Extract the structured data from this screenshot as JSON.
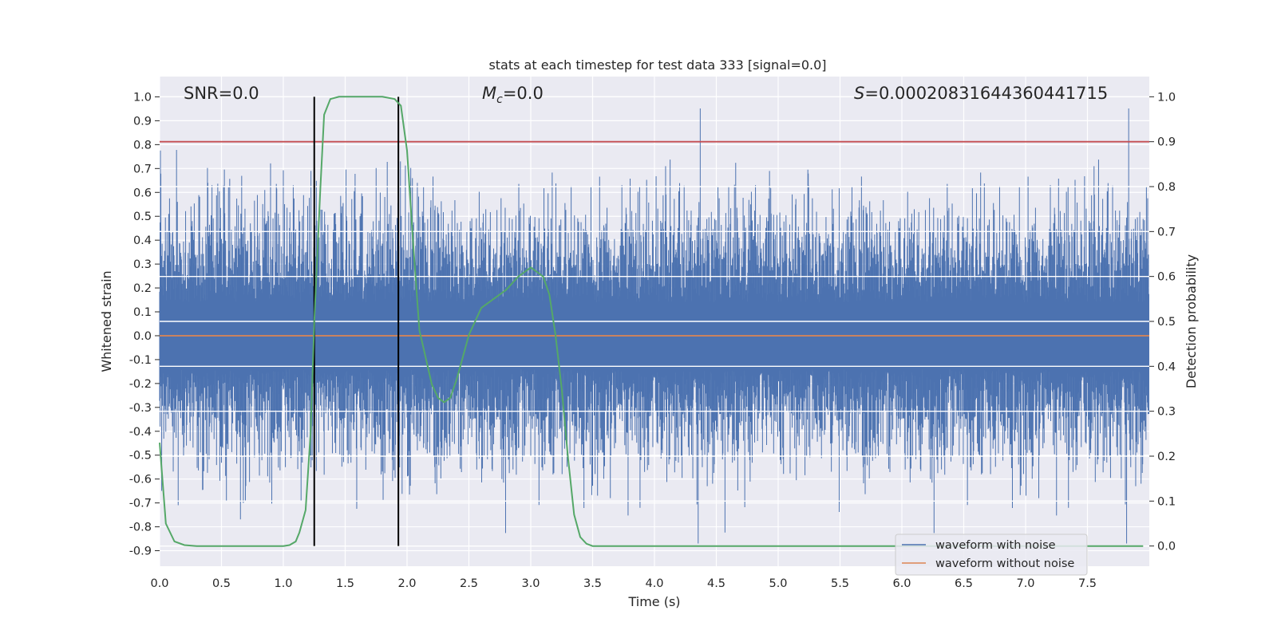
{
  "chart_data": {
    "type": "line",
    "title": "stats at each timestep for test data 333 [signal=0.0]",
    "xlabel": "Time (s)",
    "ylabel": "Whitened strain",
    "y2label": "Detection probability",
    "xlim": [
      0.0,
      8.0
    ],
    "ylim": [
      -0.965,
      1.085
    ],
    "y2lim": [
      -0.045,
      1.045
    ],
    "xticks": [
      "0.0",
      "0.5",
      "1.0",
      "1.5",
      "2.0",
      "2.5",
      "3.0",
      "3.5",
      "4.0",
      "4.5",
      "5.0",
      "5.5",
      "6.0",
      "6.5",
      "7.0",
      "7.5"
    ],
    "yticks": [
      "1.0",
      "0.9",
      "0.8",
      "0.7",
      "0.6",
      "0.5",
      "0.4",
      "0.3",
      "0.2",
      "0.1",
      "0.0",
      "-0.1",
      "-0.2",
      "-0.3",
      "-0.4",
      "-0.5",
      "-0.6",
      "-0.7",
      "-0.8",
      "-0.9"
    ],
    "y2ticks": [
      "1.0",
      "0.9",
      "0.8",
      "0.7",
      "0.6",
      "0.5",
      "0.4",
      "0.3",
      "0.2",
      "0.1",
      "0.0"
    ],
    "annotations": {
      "snr": "SNR=0.0",
      "mc_symbol": "M",
      "mc_sub": "c",
      "mc_value": "=0.0",
      "s_symbol": "S",
      "s_value": "=0.00020831644360441715"
    },
    "threshold_probability": 0.9,
    "vertical_markers_s": [
      1.25,
      1.93
    ],
    "series": [
      {
        "name": "waveform with noise",
        "color": "#4c72b0",
        "axis": "left",
        "note": "dense whitened noise, approx. range -0.87 to 1.0"
      },
      {
        "name": "waveform without noise",
        "color": "#dd8452",
        "axis": "left",
        "values_constant": 0.0
      },
      {
        "name": "Detection probability",
        "color": "#55a868",
        "axis": "right",
        "x": [
          0.0,
          0.05,
          0.12,
          0.2,
          0.3,
          0.5,
          0.8,
          1.0,
          1.05,
          1.1,
          1.13,
          1.18,
          1.22,
          1.25,
          1.3,
          1.33,
          1.38,
          1.45,
          1.6,
          1.8,
          1.9,
          1.95,
          2.0,
          2.05,
          2.1,
          2.15,
          2.2,
          2.25,
          2.3,
          2.35,
          2.4,
          2.45,
          2.5,
          2.55,
          2.6,
          2.7,
          2.8,
          2.9,
          2.95,
          3.0,
          3.05,
          3.1,
          3.15,
          3.2,
          3.25,
          3.3,
          3.35,
          3.4,
          3.45,
          3.5,
          3.6,
          4.0,
          5.0,
          6.0,
          7.0,
          7.95
        ],
        "values": [
          0.23,
          0.05,
          0.01,
          0.002,
          0.0,
          0.0,
          0.0,
          0.0,
          0.002,
          0.01,
          0.03,
          0.08,
          0.25,
          0.5,
          0.8,
          0.96,
          0.995,
          1.0,
          1.0,
          1.0,
          0.995,
          0.98,
          0.88,
          0.67,
          0.48,
          0.42,
          0.36,
          0.33,
          0.32,
          0.33,
          0.37,
          0.42,
          0.47,
          0.5,
          0.53,
          0.55,
          0.57,
          0.6,
          0.61,
          0.62,
          0.61,
          0.6,
          0.56,
          0.47,
          0.35,
          0.2,
          0.07,
          0.02,
          0.005,
          0.0,
          0.0,
          0.0,
          0.0,
          0.0,
          0.0,
          0.0
        ]
      }
    ],
    "legend": {
      "placement": "bottom-right",
      "entries": [
        "waveform with noise",
        "waveform without noise"
      ]
    },
    "grid": true
  },
  "colors": {
    "background": "#eaeaf2",
    "grid": "#ffffff",
    "threshold": "#c44e52",
    "markers": "#000000"
  }
}
